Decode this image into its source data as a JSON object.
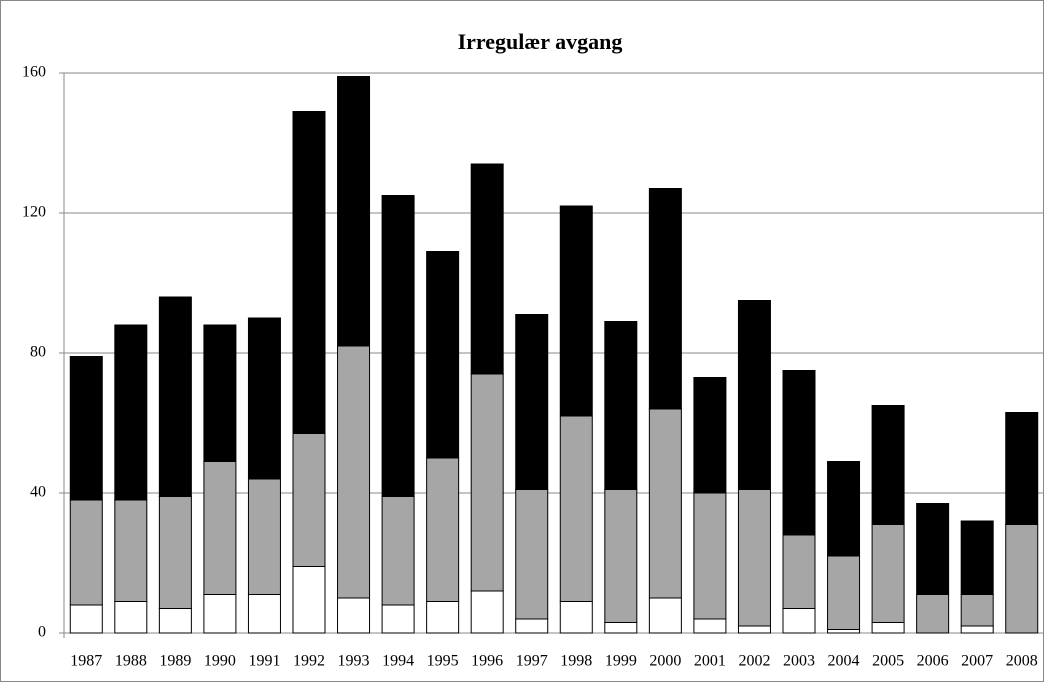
{
  "chart_data": {
    "type": "bar",
    "stacked": true,
    "title": "Irregulær avgang",
    "categories": [
      "1987",
      "1988",
      "1989",
      "1990",
      "1991",
      "1992",
      "1993",
      "1994",
      "1995",
      "1996",
      "1997",
      "1998",
      "1999",
      "2000",
      "2001",
      "2002",
      "2003",
      "2004",
      "2005",
      "2006",
      "2007",
      "2008"
    ],
    "series": [
      {
        "color": "#ffffff",
        "values": [
          8,
          9,
          7,
          11,
          11,
          19,
          10,
          8,
          9,
          12,
          4,
          9,
          3,
          10,
          4,
          2,
          7,
          1,
          3,
          0,
          2,
          0
        ]
      },
      {
        "color": "#a6a6a6",
        "values": [
          30,
          29,
          32,
          38,
          33,
          38,
          72,
          31,
          41,
          62,
          37,
          53,
          38,
          54,
          36,
          39,
          21,
          21,
          28,
          11,
          9,
          31
        ]
      },
      {
        "color": "#000000",
        "values": [
          41,
          50,
          57,
          39,
          46,
          92,
          77,
          86,
          59,
          60,
          50,
          60,
          48,
          63,
          33,
          54,
          47,
          27,
          34,
          26,
          21,
          32
        ]
      }
    ],
    "ylim": [
      0,
      160
    ],
    "yticks": [
      0,
      40,
      80,
      120,
      160
    ],
    "grid": true
  }
}
